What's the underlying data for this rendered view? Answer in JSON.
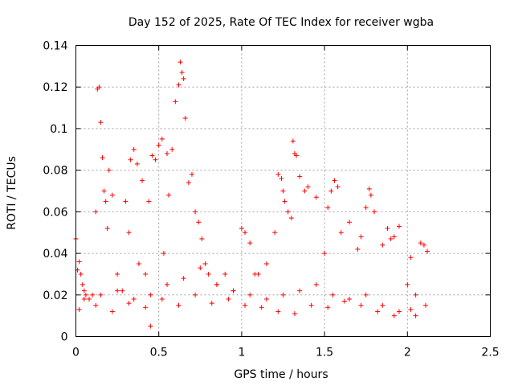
{
  "chart_data": {
    "type": "scatter",
    "title": "Day 152 of 2025, Rate Of TEC Index for receiver wgba",
    "xlabel": "GPS time / hours",
    "ylabel": "ROTI / TECUs",
    "xlim": [
      0,
      2.5
    ],
    "ylim": [
      0,
      0.14
    ],
    "xticks": [
      0,
      0.5,
      1,
      1.5,
      2,
      2.5
    ],
    "xtick_labels": [
      "0",
      "0.5",
      "1",
      "1.5",
      "2",
      "2.5"
    ],
    "yticks": [
      0,
      0.02,
      0.04,
      0.06,
      0.08,
      0.1,
      0.12,
      0.14
    ],
    "ytick_labels": [
      "0",
      "0.02",
      "0.04",
      "0.06",
      "0.08",
      "0.1",
      "0.12",
      "0.14"
    ],
    "grid": true,
    "marker": "+",
    "marker_color": "#ff0000",
    "series": [
      {
        "name": "ROTI",
        "x": [
          0.0,
          0.01,
          0.02,
          0.03,
          0.04,
          0.05,
          0.06,
          0.08,
          0.1,
          0.12,
          0.13,
          0.14,
          0.15,
          0.16,
          0.17,
          0.18,
          0.19,
          0.2,
          0.22,
          0.25,
          0.28,
          0.3,
          0.32,
          0.33,
          0.35,
          0.37,
          0.38,
          0.4,
          0.42,
          0.44,
          0.45,
          0.46,
          0.48,
          0.5,
          0.52,
          0.53,
          0.55,
          0.56,
          0.58,
          0.6,
          0.62,
          0.63,
          0.64,
          0.65,
          0.66,
          0.68,
          0.7,
          0.72,
          0.74,
          0.76,
          0.78,
          0.8,
          0.85,
          0.9,
          0.95,
          1.0,
          1.02,
          1.05,
          1.08,
          1.1,
          1.15,
          1.2,
          1.22,
          1.24,
          1.25,
          1.26,
          1.28,
          1.3,
          1.31,
          1.32,
          1.33,
          1.35,
          1.38,
          1.4,
          1.45,
          1.5,
          1.52,
          1.54,
          1.56,
          1.58,
          1.6,
          1.65,
          1.7,
          1.72,
          1.75,
          1.77,
          1.78,
          1.8,
          1.85,
          1.88,
          1.9,
          1.92,
          1.95,
          2.0,
          2.02,
          2.05,
          2.08,
          2.1,
          2.12,
          0.05,
          0.15,
          0.25,
          0.35,
          0.45,
          0.55,
          0.65,
          0.75,
          0.85,
          0.95,
          1.05,
          1.15,
          1.25,
          1.35,
          1.45,
          1.55,
          1.65,
          1.75,
          1.85,
          1.95,
          2.05,
          0.02,
          0.12,
          0.22,
          0.32,
          0.42,
          0.52,
          0.62,
          0.72,
          0.82,
          0.92,
          1.02,
          1.12,
          1.22,
          1.32,
          1.42,
          1.52,
          1.62,
          1.72,
          1.82,
          1.92,
          2.02,
          2.11
        ],
        "y": [
          0.047,
          0.032,
          0.036,
          0.03,
          0.025,
          0.022,
          0.02,
          0.018,
          0.02,
          0.06,
          0.119,
          0.12,
          0.103,
          0.086,
          0.07,
          0.065,
          0.052,
          0.08,
          0.068,
          0.03,
          0.022,
          0.065,
          0.05,
          0.085,
          0.09,
          0.083,
          0.035,
          0.075,
          0.03,
          0.065,
          0.005,
          0.087,
          0.085,
          0.092,
          0.095,
          0.04,
          0.088,
          0.068,
          0.09,
          0.113,
          0.121,
          0.132,
          0.127,
          0.124,
          0.105,
          0.074,
          0.078,
          0.06,
          0.055,
          0.047,
          0.035,
          0.03,
          0.025,
          0.03,
          0.022,
          0.052,
          0.05,
          0.045,
          0.03,
          0.03,
          0.035,
          0.05,
          0.078,
          0.076,
          0.07,
          0.065,
          0.06,
          0.057,
          0.094,
          0.088,
          0.087,
          0.077,
          0.07,
          0.072,
          0.067,
          0.04,
          0.062,
          0.07,
          0.075,
          0.072,
          0.05,
          0.055,
          0.042,
          0.048,
          0.062,
          0.071,
          0.068,
          0.06,
          0.044,
          0.052,
          0.047,
          0.048,
          0.053,
          0.025,
          0.038,
          0.02,
          0.045,
          0.044,
          0.041,
          0.018,
          0.02,
          0.022,
          0.018,
          0.02,
          0.025,
          0.028,
          0.033,
          0.025,
          0.022,
          0.02,
          0.018,
          0.02,
          0.022,
          0.025,
          0.02,
          0.018,
          0.02,
          0.015,
          0.012,
          0.01,
          0.013,
          0.015,
          0.012,
          0.016,
          0.014,
          0.018,
          0.015,
          0.02,
          0.016,
          0.018,
          0.015,
          0.014,
          0.012,
          0.011,
          0.015,
          0.014,
          0.017,
          0.015,
          0.012,
          0.01,
          0.013,
          0.015
        ]
      }
    ]
  }
}
